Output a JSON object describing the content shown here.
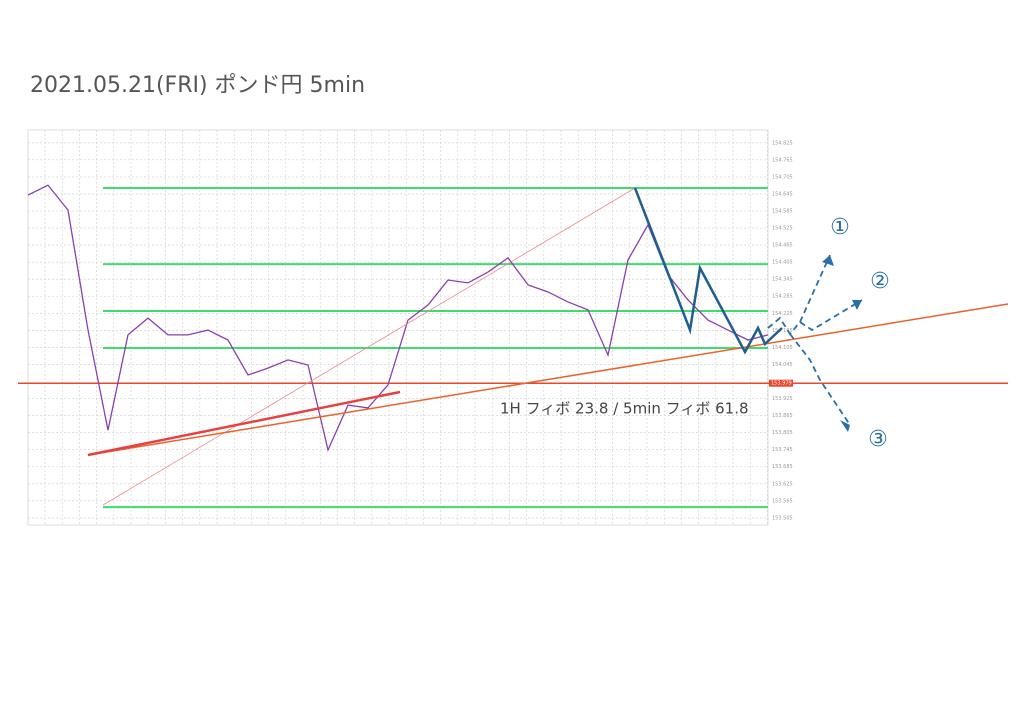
{
  "chart_data": {
    "type": "line",
    "title": "2021.05.21(FRI)  ポンド円 5min",
    "annotation": "1H フィボ 23.8 / 5min フィボ 61.8",
    "scenario_labels": [
      "①",
      "②",
      "③"
    ],
    "color": "#8a3fb0",
    "values": [
      154.641,
      154.676,
      154.588,
      154.166,
      153.814,
      154.149,
      154.208,
      154.149,
      154.149,
      154.166,
      154.131,
      154.008,
      154.032,
      154.061,
      154.043,
      153.744,
      153.902,
      153.892,
      153.973,
      154.201,
      154.254,
      154.342,
      154.332,
      154.37,
      154.42,
      154.325,
      154.3,
      154.265,
      154.237,
      154.078,
      154.413,
      154.536,
      154.36,
      154.272,
      154.201,
      154.166,
      154.131,
      154.149
    ],
    "fib_levels": [
      154.666,
      154.398,
      154.233,
      154.103,
      153.543
    ],
    "fib_color": "#3ddc6e",
    "hline": {
      "value": 153.979,
      "color": "#e8472a"
    },
    "ylim": [
      153.48,
      154.87
    ],
    "yticks": [
      153.505,
      153.565,
      153.625,
      153.685,
      153.745,
      153.805,
      153.865,
      153.925,
      154.045,
      154.105,
      154.165,
      154.225,
      154.285,
      154.345,
      154.405,
      154.465,
      154.525,
      154.585,
      154.645,
      154.705,
      154.765,
      154.825
    ],
    "grid": true
  }
}
